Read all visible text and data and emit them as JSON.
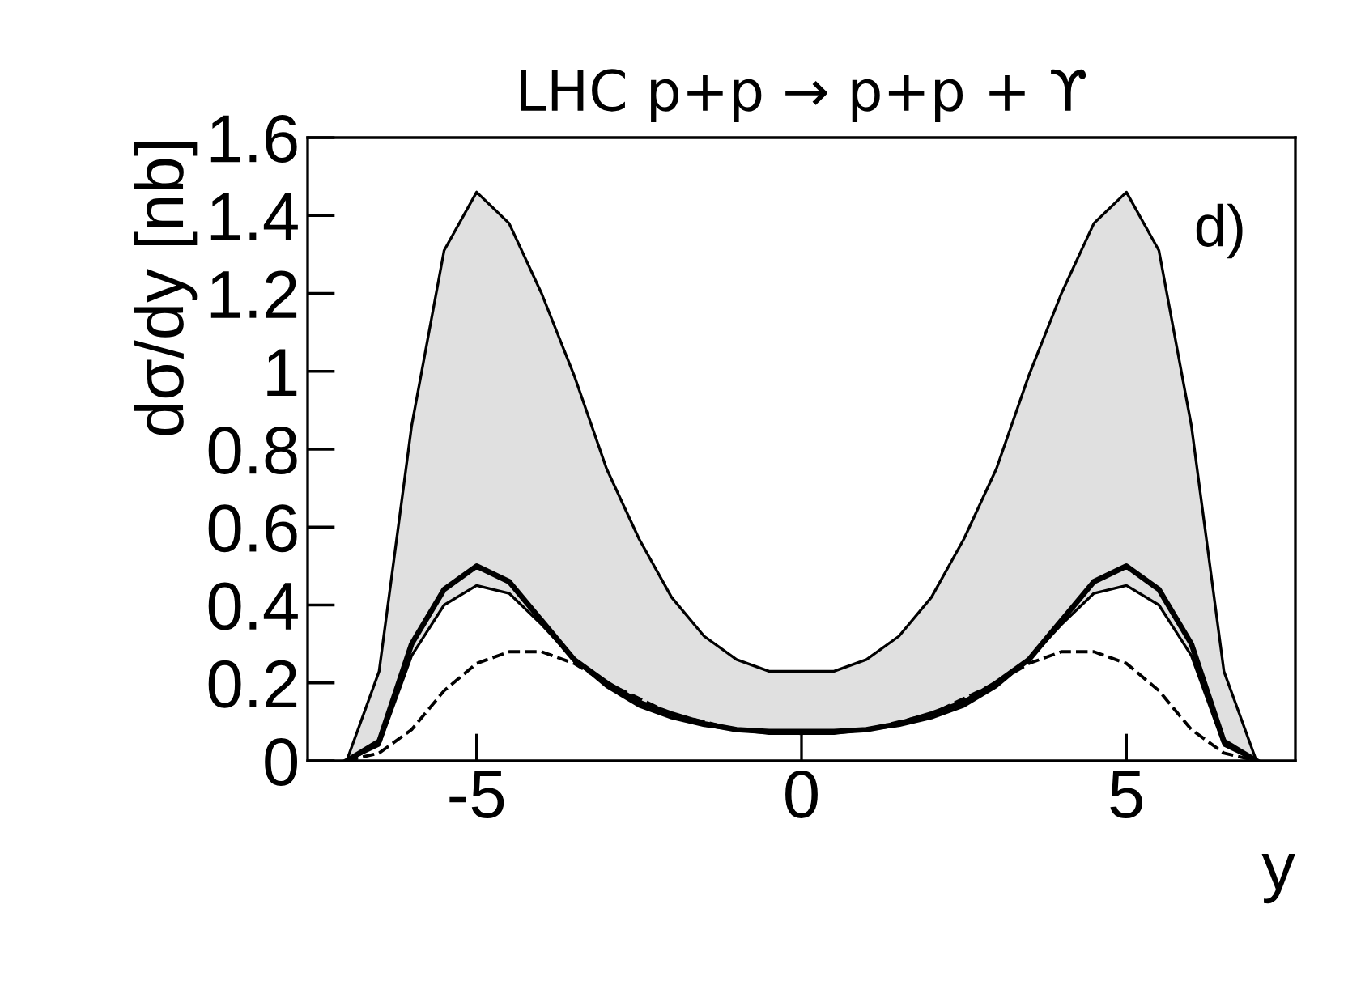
{
  "chart_data": {
    "type": "line",
    "title": "LHC p+p → p+p + ϒ",
    "xlabel": "y",
    "ylabel": "dσ/dy [nb]",
    "x": [
      -7,
      -6.5,
      -6,
      -5.5,
      -5,
      -4.5,
      -4,
      -3.5,
      -3,
      -2.5,
      -2,
      -1.5,
      -1,
      -0.5,
      0,
      0.5,
      1,
      1.5,
      2,
      2.5,
      3,
      3.5,
      4,
      4.5,
      5,
      5.5,
      6,
      6.5,
      7
    ],
    "series": [
      {
        "type": "line",
        "color": "#000000",
        "line_style": "solid",
        "values": [
          0,
          0.05,
          0.3,
          0.44,
          0.5,
          0.46,
          0.36,
          0.26,
          0.2,
          0.15,
          0.12,
          0.095,
          0.08,
          0.075,
          0.075,
          0.075,
          0.08,
          0.095,
          0.12,
          0.15,
          0.2,
          0.26,
          0.36,
          0.46,
          0.5,
          0.44,
          0.3,
          0.05,
          0
        ],
        "lower": [
          0,
          0.04,
          0.27,
          0.4,
          0.45,
          0.43,
          0.35,
          0.26,
          0.19,
          0.14,
          0.11,
          0.09,
          0.08,
          0.07,
          0.07,
          0.07,
          0.08,
          0.09,
          0.11,
          0.14,
          0.19,
          0.26,
          0.35,
          0.43,
          0.45,
          0.4,
          0.27,
          0.04,
          0
        ],
        "upper": [
          0,
          0.23,
          0.86,
          1.31,
          1.46,
          1.38,
          1.2,
          0.99,
          0.75,
          0.57,
          0.42,
          0.32,
          0.26,
          0.23,
          0.23,
          0.23,
          0.26,
          0.32,
          0.42,
          0.57,
          0.75,
          0.99,
          1.2,
          1.38,
          1.46,
          1.31,
          0.86,
          0.23,
          0
        ]
      },
      {
        "type": "line",
        "color": "#000000",
        "line_style": "dashed",
        "values": [
          0,
          0.02,
          0.08,
          0.18,
          0.25,
          0.28,
          0.28,
          0.25,
          0.2,
          0.16,
          0.12,
          0.1,
          0.08,
          0.075,
          0.07,
          0.075,
          0.08,
          0.1,
          0.12,
          0.16,
          0.2,
          0.25,
          0.28,
          0.28,
          0.25,
          0.18,
          0.08,
          0.02,
          0
        ]
      }
    ],
    "xlim": [
      -7.6,
      7.6
    ],
    "ylim": [
      0,
      1.6
    ],
    "xticks": [
      -5,
      0,
      5
    ],
    "yticks": [
      0,
      0.2,
      0.4,
      0.6,
      0.8,
      1,
      1.2,
      1.4,
      1.6
    ],
    "annotations": [
      "d)"
    ],
    "grid": false,
    "legend": false
  }
}
